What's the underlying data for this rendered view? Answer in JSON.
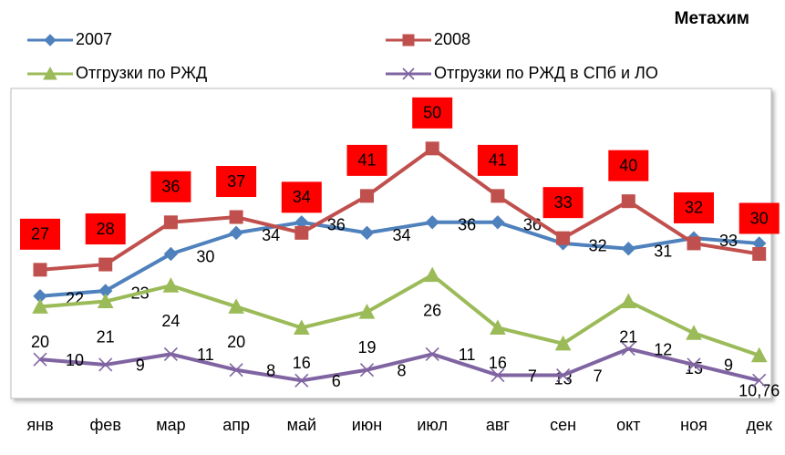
{
  "chart_data": {
    "type": "line",
    "title": "Метахим",
    "categories": [
      "янв",
      "фев",
      "мар",
      "апр",
      "май",
      "июн",
      "июл",
      "авг",
      "сен",
      "окт",
      "ноя",
      "дек"
    ],
    "ylim": [
      0,
      60
    ],
    "series": [
      {
        "name": "2007",
        "color": "#4f81bd",
        "marker": "diamond",
        "values": [
          22,
          23,
          30,
          34,
          36,
          34,
          36,
          36,
          32,
          31,
          33,
          32
        ]
      },
      {
        "name": "2008",
        "color": "#c0504d",
        "marker": "square",
        "values": [
          27,
          28,
          36,
          37,
          34,
          41,
          50,
          41,
          33,
          40,
          32,
          30
        ]
      },
      {
        "name": "Отгрузки по РЖД",
        "color": "#9bbb59",
        "marker": "triangle",
        "values": [
          20,
          21,
          24,
          20,
          16,
          19,
          26,
          16,
          13,
          21,
          15,
          10.76
        ],
        "value_labels": [
          "20",
          "21",
          "24",
          "20",
          "16",
          "19",
          "26",
          "16",
          "13",
          "21",
          "15",
          "10,76"
        ]
      },
      {
        "name": "Отгрузки по РЖД в СПб и ЛО",
        "color": "#8064a2",
        "marker": "x",
        "values": [
          10,
          9,
          11,
          8,
          6,
          8,
          11,
          7,
          7,
          12,
          9,
          6
        ]
      }
    ]
  }
}
